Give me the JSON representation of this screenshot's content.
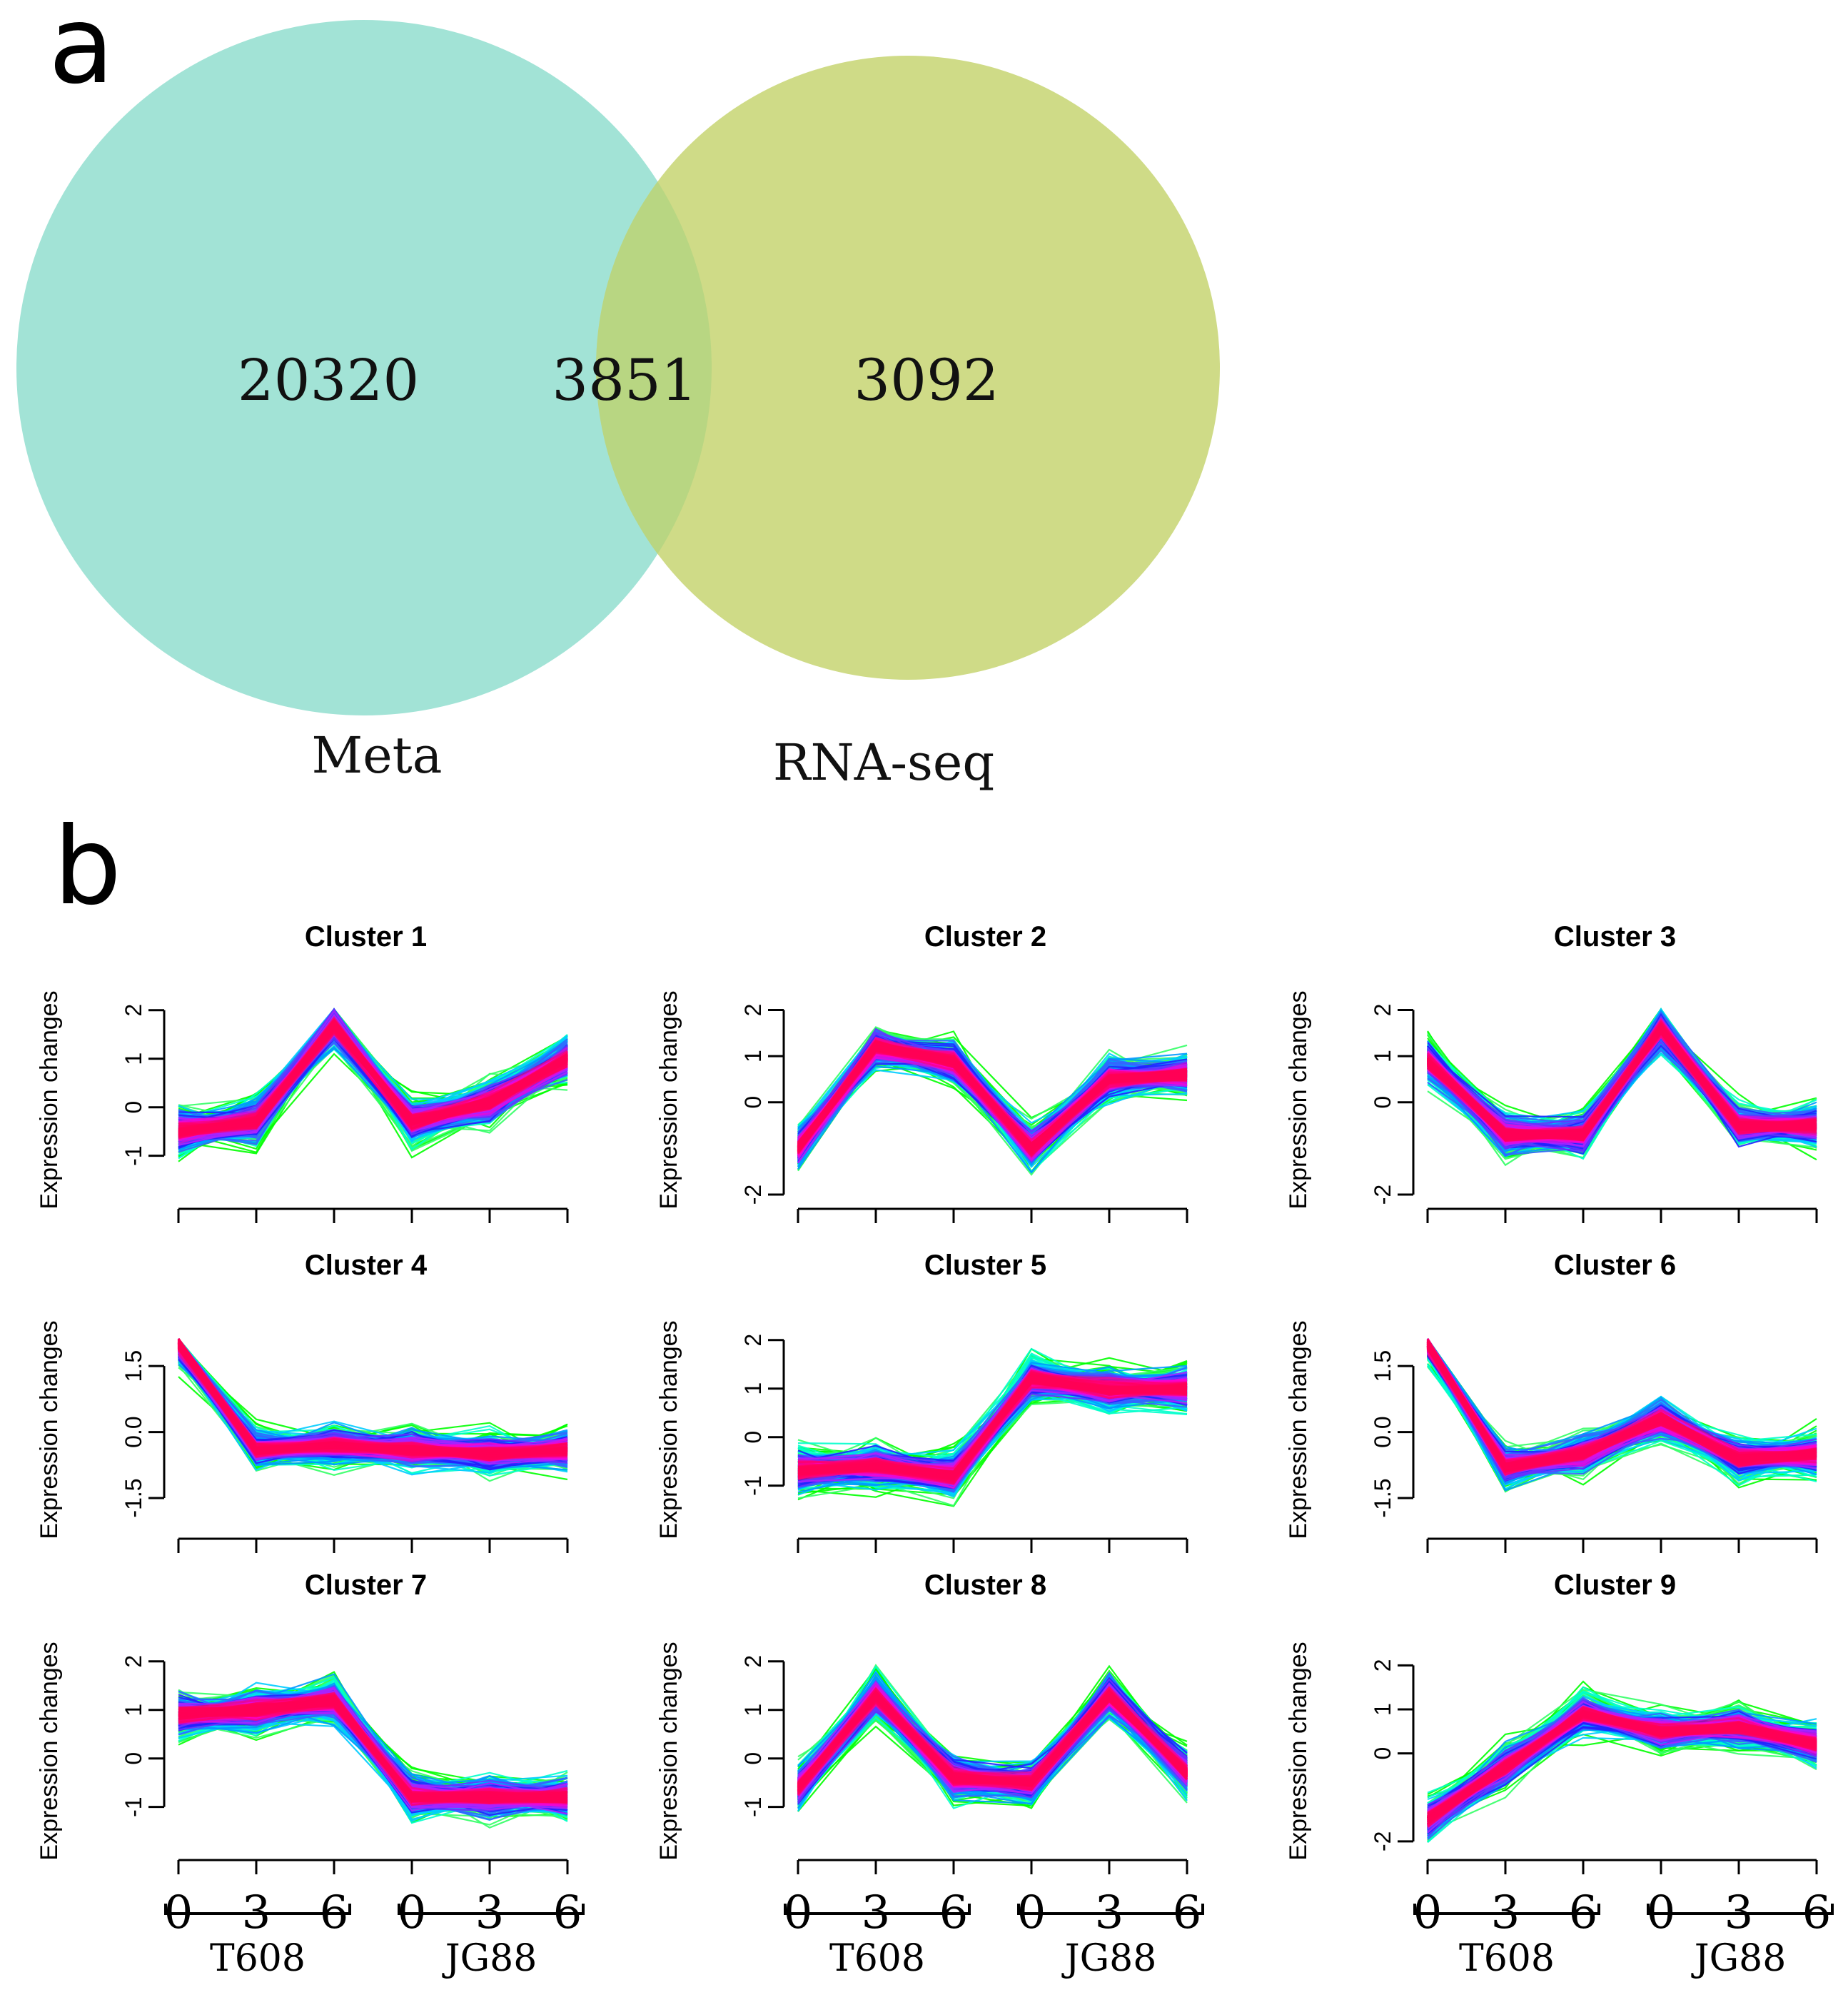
{
  "panels": {
    "a": "a",
    "b": "b"
  },
  "venn": {
    "left_label": "Meta",
    "right_label": "RNA-seq",
    "left_only": "20320",
    "overlap": "3851",
    "right_only": "3092",
    "left_color": "#a2e3d6",
    "right_color": "#cfdb87",
    "overlap_color": "#b8d682"
  },
  "chart_data": {
    "type": "line",
    "ylabel": "Expression changes",
    "x_ticks": [
      "0",
      "3",
      "6",
      "0",
      "3",
      "6"
    ],
    "groups": [
      "T608",
      "JG88"
    ],
    "line_colors": [
      "#00ff00",
      "#33ff66",
      "#00ffcc",
      "#00ccff",
      "#0099ff",
      "#3366ff",
      "#2222ff",
      "#6633ff",
      "#aa22ff",
      "#ff00cc",
      "#ff0066",
      "#ff0055"
    ],
    "clusters": [
      {
        "title": "Cluster 1",
        "ylim": [
          -1.8,
          2.1
        ],
        "yticks": [
          2,
          1,
          0,
          -1
        ],
        "ytick_labels": [
          "2",
          "1",
          "0",
          "-1"
        ],
        "profile": [
          -0.5,
          -0.3,
          1.7,
          -0.3,
          0.1,
          1.0
        ]
      },
      {
        "title": "Cluster 2",
        "ylim": [
          -2.0,
          2.1
        ],
        "yticks": [
          2,
          1,
          0,
          -2
        ],
        "ytick_labels": [
          "2",
          "1",
          "0",
          "-2"
        ],
        "profile": [
          -1.0,
          1.2,
          0.9,
          -1.0,
          0.5,
          0.6
        ]
      },
      {
        "title": "Cluster 3",
        "ylim": [
          -2.0,
          2.1
        ],
        "yticks": [
          2,
          1,
          0,
          -2
        ],
        "ytick_labels": [
          "2",
          "1",
          "0",
          "-2"
        ],
        "profile": [
          0.9,
          -0.7,
          -0.7,
          1.6,
          -0.5,
          -0.5
        ]
      },
      {
        "title": "Cluster 4",
        "ylim": [
          -2.1,
          2.2
        ],
        "yticks": [
          1.5,
          0.0,
          -1.5
        ],
        "ytick_labels": [
          "1.5",
          "0.0",
          "-1.5"
        ],
        "profile": [
          2.0,
          -0.4,
          -0.3,
          -0.4,
          -0.5,
          -0.4
        ]
      },
      {
        "title": "Cluster 5",
        "ylim": [
          -1.8,
          2.1
        ],
        "yticks": [
          2,
          1,
          0,
          -1
        ],
        "ytick_labels": [
          "2",
          "1",
          "0",
          "-1"
        ],
        "profile": [
          -0.7,
          -0.6,
          -0.8,
          1.2,
          1.0,
          1.0
        ]
      },
      {
        "title": "Cluster 6",
        "ylim": [
          -2.1,
          2.2
        ],
        "yticks": [
          1.5,
          0.0,
          -1.5
        ],
        "ytick_labels": [
          "1.5",
          "0.0",
          "-1.5"
        ],
        "profile": [
          2.0,
          -0.8,
          -0.5,
          0.3,
          -0.6,
          -0.5
        ]
      },
      {
        "title": "Cluster 7",
        "ylim": [
          -1.8,
          2.1
        ],
        "yticks": [
          2,
          1,
          0,
          -1
        ],
        "ytick_labels": [
          "2",
          "1",
          "0",
          "-1"
        ],
        "profile": [
          0.9,
          1.0,
          1.2,
          -0.8,
          -0.8,
          -0.8
        ]
      },
      {
        "title": "Cluster 8",
        "ylim": [
          -1.8,
          2.1
        ],
        "yticks": [
          2,
          1,
          0,
          -1
        ],
        "ytick_labels": [
          "2",
          "1",
          "0",
          "-1"
        ],
        "profile": [
          -0.6,
          1.3,
          -0.4,
          -0.5,
          1.3,
          -0.3
        ]
      },
      {
        "title": "Cluster 9",
        "ylim": [
          -2.1,
          2.2
        ],
        "yticks": [
          2,
          1,
          0,
          -2
        ],
        "ytick_labels": [
          "2",
          "1",
          "0",
          "-2"
        ],
        "profile": [
          -1.5,
          -0.3,
          0.9,
          0.5,
          0.6,
          0.2
        ]
      }
    ]
  }
}
